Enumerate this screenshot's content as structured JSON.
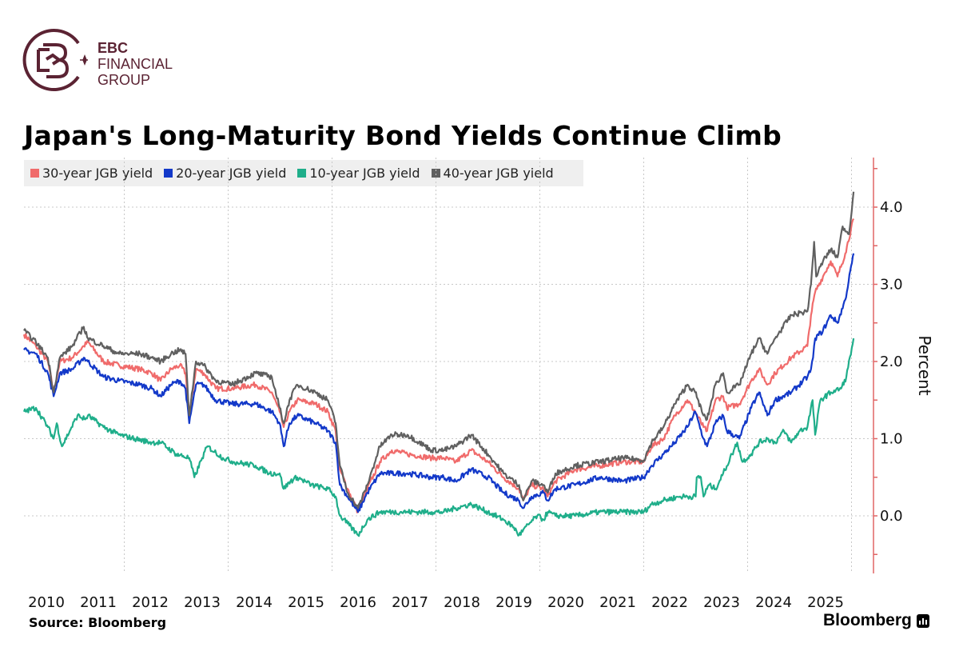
{
  "brand": {
    "line1": "EBC",
    "line2": "FINANCIAL",
    "line3": "GROUP",
    "color": "#5b2333"
  },
  "source": "Source: Bloomberg",
  "publisher": "Bloomberg",
  "chart_data": {
    "type": "line",
    "title": "Japan's Long-Maturity Bond Yields Continue Climb",
    "ylabel": "Percent",
    "xlabel": "",
    "ylim": [
      -0.75,
      4.65
    ],
    "xlim": [
      2009.57,
      2025.6
    ],
    "y_ticks": [
      "0.0",
      "1.0",
      "2.0",
      "3.0",
      "4.0"
    ],
    "y_tick_values": [
      0,
      1,
      2,
      3,
      4
    ],
    "x_ticks": [
      "2010",
      "2011",
      "2012",
      "2013",
      "2014",
      "2015",
      "2016",
      "2017",
      "2018",
      "2019",
      "2020",
      "2021",
      "2022",
      "2023",
      "2024",
      "2025"
    ],
    "grid": true,
    "y_axis_side": "right",
    "axis_color": "#e06666",
    "legend_placement": "top-left",
    "series": [
      {
        "name": "30-year JGB yield",
        "color": "#f06b6b",
        "x": [
          2009.57,
          2009.8,
          2010.03,
          2010.14,
          2010.26,
          2010.5,
          2010.72,
          2010.8,
          2011.1,
          2011.4,
          2011.8,
          2012.03,
          2012.2,
          2012.4,
          2012.57,
          2012.68,
          2012.75,
          2012.88,
          2013.03,
          2013.26,
          2013.57,
          2014.03,
          2014.34,
          2014.49,
          2014.57,
          2014.68,
          2014.83,
          2015.18,
          2015.42,
          2015.57,
          2015.65,
          2015.8,
          2016.0,
          2016.18,
          2016.42,
          2016.65,
          2016.95,
          2017.42,
          2017.65,
          2017.88,
          2018.18,
          2018.5,
          2018.8,
          2019.1,
          2019.18,
          2019.34,
          2019.57,
          2019.65,
          2019.8,
          2020.18,
          2020.65,
          2021.1,
          2021.5,
          2021.65,
          2021.88,
          2022.1,
          2022.34,
          2022.49,
          2022.65,
          2022.72,
          2022.88,
          2023.03,
          2023.1,
          2023.34,
          2023.57,
          2023.72,
          2023.88,
          2024.03,
          2024.34,
          2024.65,
          2024.72,
          2024.8,
          2024.95,
          2025.1,
          2025.23,
          2025.38,
          2025.54
        ],
        "y": [
          2.35,
          2.2,
          2.0,
          1.6,
          2.0,
          2.05,
          2.2,
          2.25,
          2.0,
          1.95,
          1.9,
          1.85,
          1.75,
          1.9,
          1.95,
          1.85,
          1.3,
          1.9,
          1.85,
          1.65,
          1.65,
          1.7,
          1.6,
          1.35,
          1.15,
          1.35,
          1.5,
          1.45,
          1.35,
          1.1,
          0.6,
          0.35,
          0.05,
          0.35,
          0.7,
          0.85,
          0.8,
          0.75,
          0.75,
          0.7,
          0.85,
          0.7,
          0.5,
          0.35,
          0.2,
          0.4,
          0.35,
          0.25,
          0.45,
          0.6,
          0.65,
          0.7,
          0.7,
          0.9,
          1.0,
          1.3,
          1.5,
          1.35,
          1.15,
          1.1,
          1.5,
          1.55,
          1.4,
          1.45,
          1.75,
          1.9,
          1.7,
          1.85,
          2.05,
          2.2,
          2.6,
          2.9,
          3.1,
          3.3,
          3.1,
          3.4,
          3.85
        ]
      },
      {
        "name": "20-year JGB yield",
        "color": "#1339c9",
        "x": [
          2009.57,
          2009.8,
          2010.03,
          2010.14,
          2010.26,
          2010.5,
          2010.72,
          2010.8,
          2011.1,
          2011.4,
          2011.8,
          2012.03,
          2012.2,
          2012.4,
          2012.57,
          2012.68,
          2012.75,
          2012.88,
          2013.03,
          2013.26,
          2013.57,
          2014.03,
          2014.34,
          2014.49,
          2014.57,
          2014.68,
          2014.83,
          2015.18,
          2015.42,
          2015.57,
          2015.65,
          2015.8,
          2016.0,
          2016.18,
          2016.42,
          2016.65,
          2016.95,
          2017.42,
          2017.65,
          2017.88,
          2018.18,
          2018.5,
          2018.8,
          2019.1,
          2019.18,
          2019.34,
          2019.57,
          2019.65,
          2019.8,
          2020.18,
          2020.65,
          2021.1,
          2021.5,
          2021.65,
          2021.88,
          2022.1,
          2022.34,
          2022.49,
          2022.65,
          2022.72,
          2022.88,
          2023.03,
          2023.1,
          2023.34,
          2023.57,
          2023.72,
          2023.88,
          2024.03,
          2024.34,
          2024.65,
          2024.72,
          2024.76,
          2024.8,
          2024.95,
          2025.1,
          2025.23,
          2025.38,
          2025.54
        ],
        "y": [
          2.15,
          2.1,
          1.85,
          1.55,
          1.85,
          1.9,
          2.05,
          2.0,
          1.8,
          1.75,
          1.7,
          1.65,
          1.55,
          1.7,
          1.75,
          1.65,
          1.2,
          1.7,
          1.7,
          1.5,
          1.45,
          1.45,
          1.35,
          1.2,
          0.9,
          1.2,
          1.3,
          1.2,
          1.1,
          0.95,
          0.4,
          0.25,
          0.05,
          0.3,
          0.55,
          0.55,
          0.55,
          0.5,
          0.5,
          0.45,
          0.6,
          0.5,
          0.3,
          0.2,
          0.1,
          0.25,
          0.3,
          0.2,
          0.35,
          0.4,
          0.5,
          0.45,
          0.5,
          0.65,
          0.8,
          0.95,
          1.15,
          1.35,
          1.0,
          0.9,
          1.2,
          1.3,
          1.1,
          1.0,
          1.4,
          1.6,
          1.3,
          1.5,
          1.6,
          1.8,
          1.9,
          2.05,
          2.3,
          2.4,
          2.6,
          2.5,
          2.8,
          3.4
        ]
      },
      {
        "name": "10-year JGB yield",
        "color": "#1fae8a",
        "x": [
          2009.57,
          2009.8,
          2010.03,
          2010.14,
          2010.2,
          2010.3,
          2010.45,
          2010.6,
          2010.75,
          2010.8,
          2011.1,
          2011.4,
          2011.7,
          2012.03,
          2012.2,
          2012.5,
          2012.75,
          2012.85,
          2013.0,
          2013.1,
          2013.4,
          2013.6,
          2014.03,
          2014.3,
          2014.49,
          2014.57,
          2014.7,
          2014.83,
          2015.1,
          2015.42,
          2015.57,
          2015.65,
          2015.8,
          2016.0,
          2016.18,
          2016.42,
          2016.65,
          2016.95,
          2017.42,
          2017.65,
          2017.88,
          2018.18,
          2018.5,
          2018.8,
          2019.0,
          2019.1,
          2019.3,
          2019.45,
          2019.57,
          2019.65,
          2019.8,
          2020.18,
          2020.65,
          2021.1,
          2021.5,
          2021.65,
          2021.88,
          2022.2,
          2022.5,
          2022.52,
          2022.6,
          2022.65,
          2022.75,
          2022.88,
          2023.03,
          2023.2,
          2023.3,
          2023.4,
          2023.57,
          2023.72,
          2023.88,
          2024.03,
          2024.2,
          2024.34,
          2024.5,
          2024.65,
          2024.75,
          2024.8,
          2024.9,
          2025.1,
          2025.3,
          2025.4,
          2025.54
        ],
        "y": [
          1.35,
          1.4,
          1.15,
          1.0,
          1.2,
          0.9,
          1.1,
          1.3,
          1.25,
          1.3,
          1.15,
          1.05,
          1.0,
          0.95,
          0.95,
          0.8,
          0.75,
          0.5,
          0.75,
          0.9,
          0.75,
          0.7,
          0.65,
          0.55,
          0.55,
          0.35,
          0.45,
          0.5,
          0.4,
          0.35,
          0.25,
          0.0,
          -0.1,
          -0.25,
          -0.05,
          0.05,
          0.05,
          0.05,
          0.05,
          0.05,
          0.1,
          0.15,
          0.05,
          -0.05,
          -0.15,
          -0.25,
          -0.1,
          0.0,
          -0.05,
          0.05,
          0.0,
          0.0,
          0.05,
          0.05,
          0.05,
          0.15,
          0.2,
          0.25,
          0.25,
          0.5,
          0.5,
          0.25,
          0.4,
          0.35,
          0.55,
          0.8,
          0.95,
          0.7,
          0.8,
          0.95,
          1.0,
          0.95,
          1.1,
          0.95,
          1.1,
          1.15,
          1.5,
          1.05,
          1.5,
          1.6,
          1.65,
          1.8,
          2.3
        ]
      },
      {
        "name": "40-year JGB yield",
        "color": "#606060",
        "x": [
          2009.57,
          2009.8,
          2010.03,
          2010.14,
          2010.26,
          2010.5,
          2010.72,
          2010.8,
          2011.1,
          2011.4,
          2011.8,
          2012.03,
          2012.2,
          2012.4,
          2012.57,
          2012.68,
          2012.75,
          2012.88,
          2013.03,
          2013.26,
          2013.57,
          2014.03,
          2014.34,
          2014.49,
          2014.57,
          2014.68,
          2014.83,
          2015.18,
          2015.42,
          2015.57,
          2015.65,
          2015.8,
          2016.0,
          2016.18,
          2016.42,
          2016.65,
          2016.95,
          2017.42,
          2017.65,
          2017.88,
          2018.18,
          2018.5,
          2018.8,
          2019.1,
          2019.18,
          2019.34,
          2019.57,
          2019.65,
          2019.8,
          2020.18,
          2020.65,
          2021.1,
          2021.5,
          2021.65,
          2021.88,
          2022.1,
          2022.34,
          2022.49,
          2022.65,
          2022.72,
          2022.88,
          2023.03,
          2023.1,
          2023.34,
          2023.57,
          2023.72,
          2023.88,
          2024.03,
          2024.34,
          2024.65,
          2024.72,
          2024.78,
          2024.82,
          2024.95,
          2025.1,
          2025.23,
          2025.33,
          2025.45,
          2025.54
        ],
        "y": [
          2.4,
          2.25,
          2.05,
          1.6,
          2.05,
          2.2,
          2.45,
          2.3,
          2.2,
          2.1,
          2.1,
          2.05,
          2.0,
          2.1,
          2.15,
          2.1,
          1.3,
          2.0,
          1.95,
          1.75,
          1.7,
          1.85,
          1.8,
          1.4,
          1.2,
          1.5,
          1.7,
          1.6,
          1.5,
          1.2,
          0.65,
          0.3,
          0.1,
          0.4,
          0.9,
          1.05,
          1.05,
          0.85,
          0.85,
          0.9,
          1.05,
          0.8,
          0.55,
          0.4,
          0.2,
          0.45,
          0.4,
          0.3,
          0.55,
          0.65,
          0.7,
          0.75,
          0.72,
          0.95,
          1.15,
          1.45,
          1.7,
          1.6,
          1.3,
          1.25,
          1.7,
          1.85,
          1.6,
          1.7,
          2.1,
          2.3,
          2.1,
          2.3,
          2.6,
          2.65,
          3.0,
          3.55,
          3.1,
          3.3,
          3.45,
          3.35,
          3.75,
          3.65,
          4.2
        ]
      }
    ]
  }
}
